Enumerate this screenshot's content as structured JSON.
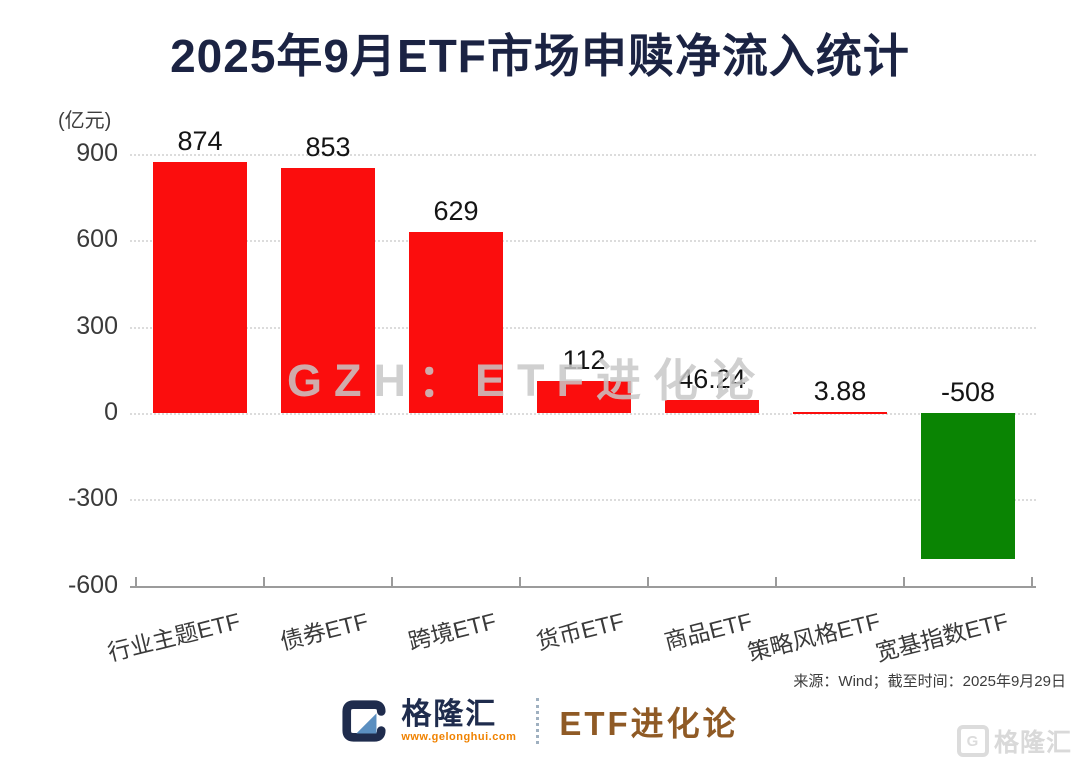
{
  "title": "2025年9月ETF市场申赎净流入统计",
  "chart_data": {
    "type": "bar",
    "title": "2025年9月ETF市场申赎净流入统计",
    "unit_label": "(亿元)",
    "categories": [
      "行业主题ETF",
      "债券ETF",
      "跨境ETF",
      "货币ETF",
      "商品ETF",
      "策略风格ETF",
      "宽基指数ETF"
    ],
    "values": [
      874,
      853,
      629,
      112,
      46.24,
      3.88,
      -508
    ],
    "value_labels": [
      "874",
      "853",
      "629",
      "112",
      "46.24",
      "3.88",
      "-508"
    ],
    "ylim": [
      -600,
      900
    ],
    "yticks": [
      900,
      600,
      300,
      0,
      -300,
      -600
    ],
    "grid": "dotted-horizontal",
    "legend_position": "none",
    "colors": {
      "positive_bar": "#fb0d0d",
      "negative_bar": "#0a8403",
      "gridline": "#dcdcdc",
      "axis": "#9b9b9b",
      "title": "#1b2343"
    }
  },
  "watermarks": {
    "overlay": "GZH：ETF进化论",
    "corner_brand": "格隆汇"
  },
  "source_note": "来源：Wind；截至时间：2025年9月29日",
  "footer": {
    "logo_letter": "G",
    "brand": "格隆汇",
    "brand_url": "www.gelonghui.com",
    "publication": "ETF进化论"
  }
}
